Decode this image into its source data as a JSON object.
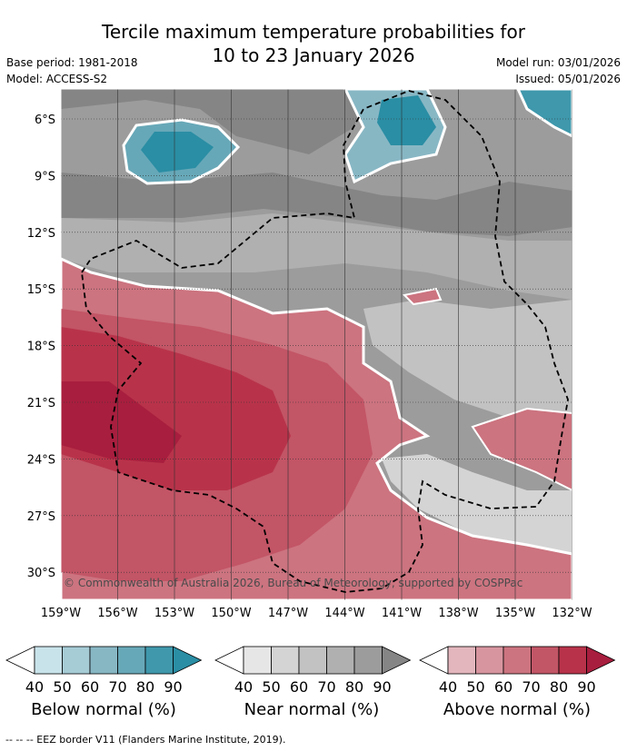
{
  "header": {
    "title_line1": "Tercile maximum temperature probabilities for",
    "title_line2": "10 to 23 January 2026",
    "base_period": "Base period: 1981-2018",
    "model": "Model: ACCESS-S2",
    "model_run": "Model run: 03/01/2026",
    "issued": "Issued: 05/01/2026"
  },
  "map": {
    "lat_labels": [
      "6°S",
      "9°S",
      "12°S",
      "15°S",
      "18°S",
      "21°S",
      "24°S",
      "27°S",
      "30°S"
    ],
    "lon_labels": [
      "159°W",
      "156°W",
      "153°W",
      "150°W",
      "147°W",
      "144°W",
      "141°W",
      "138°W",
      "135°W",
      "132°W"
    ],
    "copyright": "© Commonwealth of Australia 2026, Bureau of Meteorology, supported by COSPPac"
  },
  "legend": {
    "tick_values": [
      "40",
      "50",
      "60",
      "70",
      "80",
      "90"
    ],
    "below": {
      "label": "Below normal (%)",
      "colors": [
        "#ffffff",
        "#c9e3ea",
        "#a6ccd6",
        "#88b7c4",
        "#67a8b8",
        "#3f98ac",
        "#2a8ea4"
      ]
    },
    "near": {
      "label": "Near normal (%)",
      "colors": [
        "#ffffff",
        "#e6e6e6",
        "#d4d4d4",
        "#c2c2c2",
        "#b0b0b0",
        "#9c9c9c",
        "#858585"
      ]
    },
    "above": {
      "label": "Above normal (%)",
      "colors": [
        "#ffffff",
        "#e3b6bd",
        "#d7959f",
        "#cc7480",
        "#c25566",
        "#b8334a",
        "#a81e3e"
      ]
    }
  },
  "footnote": "--  --  -- EEZ border V11 (Flanders Marine Institute, 2019)."
}
